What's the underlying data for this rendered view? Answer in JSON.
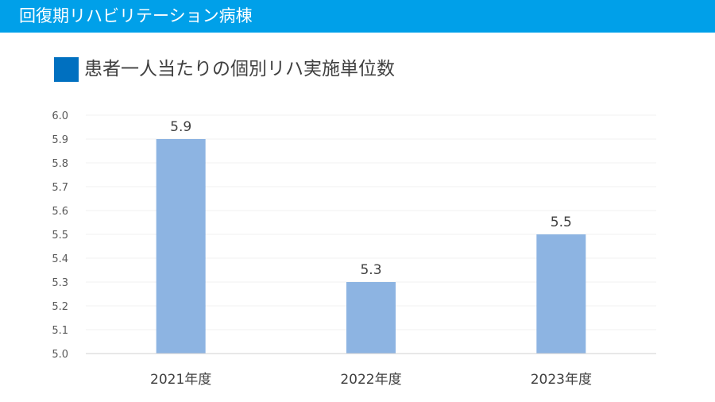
{
  "header": {
    "title": "回復期リハビリテーション病棟"
  },
  "colors": {
    "header_bg": "#00a0e9",
    "marker": "#0070c0",
    "bar": "#8db4e2"
  },
  "chart_data": {
    "type": "bar",
    "title": "患者一人当たりの個別リハ実施単位数",
    "categories": [
      "2021年度",
      "2022年度",
      "2023年度"
    ],
    "values": [
      5.9,
      5.3,
      5.5
    ],
    "data_labels": [
      "5.9",
      "5.3",
      "5.5"
    ],
    "y_ticks": [
      "6.0",
      "5.9",
      "5.8",
      "5.7",
      "5.6",
      "5.5",
      "5.4",
      "5.3",
      "5.2",
      "5.1",
      "5.0"
    ],
    "ylim": [
      5.0,
      6.0
    ],
    "xlabel": "",
    "ylabel": "",
    "grid": true,
    "legend": "none"
  }
}
